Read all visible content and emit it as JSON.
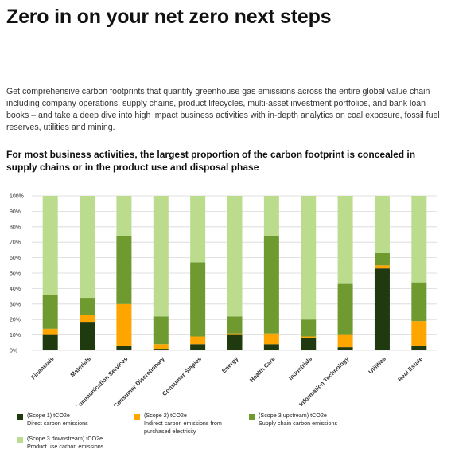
{
  "heading": {
    "title": "Zero in on your net zero next steps",
    "intro": "Get comprehensive carbon footprints that quantify greenhouse gas emissions across the entire global value chain including company operations, supply chains, product lifecycles, multi-asset investment portfolios, and bank loan books – and take a deep dive into high impact business activities with in-depth analytics on coal exposure, fossil fuel reserves, utilities and mining.",
    "subtitle": "For most business activities, the largest proportion of the carbon footprint is concealed in supply chains or in the product use and disposal phase"
  },
  "chart_data": {
    "type": "bar",
    "stacked": true,
    "categories": [
      "Financials",
      "Materials",
      "Communication Services",
      "Consumer Discretionary",
      "Consumer Staples",
      "Energy",
      "Health Care",
      "Industrials",
      "Information Technology",
      "Utilities",
      "Real Estate"
    ],
    "ylim": [
      0,
      100
    ],
    "yticks": [
      "0%",
      "10%",
      "20%",
      "30%",
      "40%",
      "50%",
      "60%",
      "70%",
      "80%",
      "90%",
      "100%"
    ],
    "grid": true,
    "legend_position": "bottom",
    "series": [
      {
        "name": "(Scope 1) tCO2e",
        "label": "Direct carbon emissions",
        "color": "#1f3a0f",
        "values": [
          10,
          18,
          3,
          1,
          4,
          10,
          4,
          8,
          2,
          53,
          3
        ]
      },
      {
        "name": "(Scope 2) tCO2e",
        "label": "Indirect carbon emissions from purchased electricity",
        "color": "#ffa500",
        "values": [
          4,
          5,
          27,
          3,
          5,
          1,
          7,
          1,
          8,
          2,
          16
        ]
      },
      {
        "name": "(Scope 3 upstream) tCO2e",
        "label": "Supply chain carbon emissions",
        "color": "#6e9a30",
        "values": [
          22,
          11,
          44,
          18,
          48,
          11,
          63,
          11,
          33,
          8,
          25
        ]
      },
      {
        "name": "(Scope 3 downstream) tCO2e",
        "label": "Product use carbon emissions",
        "color": "#bbdc8c",
        "values": [
          64,
          66,
          26,
          78,
          43,
          78,
          26,
          80,
          57,
          37,
          56
        ]
      }
    ]
  }
}
